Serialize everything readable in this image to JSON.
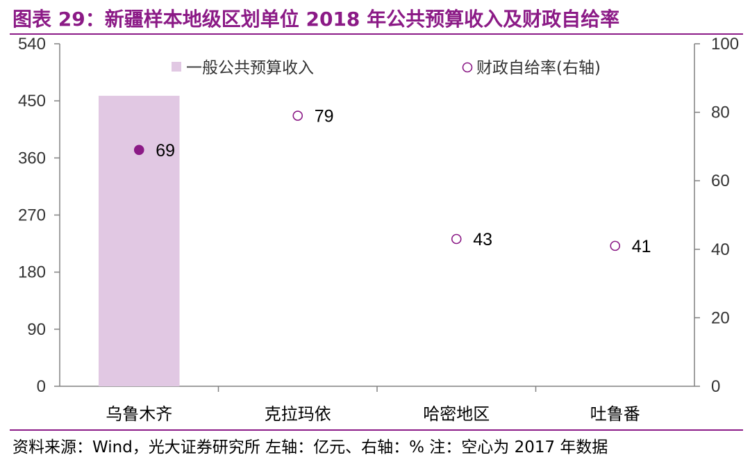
{
  "title": "图表 29：新疆样本地级区划单位 2018 年公共预算收入及财政自给率",
  "footer": "资料来源：Wind，光大证券研究所   左轴：亿元、右轴：%   注：空心为 2017 年数据",
  "colors": {
    "accent": "#8b1a86",
    "bar": "#e1c8e3",
    "marker": "#8b1a86"
  },
  "chart_data": {
    "type": "bar",
    "categories": [
      "乌鲁木齐",
      "克拉玛依",
      "哈密地区",
      "吐鲁番"
    ],
    "series": [
      {
        "name": "一般公共预算收入",
        "type": "bar",
        "axis": "left",
        "values": [
          458,
          null,
          null,
          null
        ]
      },
      {
        "name": "财政自给率(右轴)",
        "type": "scatter",
        "axis": "right",
        "values": [
          69,
          79,
          43,
          41
        ],
        "value_labels": [
          "69",
          "79",
          "43",
          "41"
        ],
        "hollow": [
          false,
          true,
          true,
          true
        ]
      }
    ],
    "y_left": {
      "lim": [
        0,
        540
      ],
      "ticks": [
        "0",
        "90",
        "180",
        "270",
        "360",
        "450",
        "540"
      ]
    },
    "y_right": {
      "lim": [
        0,
        100
      ],
      "ticks": [
        "0",
        "20",
        "40",
        "60",
        "80",
        "100"
      ]
    },
    "legend_placement": "top",
    "grid": false
  }
}
